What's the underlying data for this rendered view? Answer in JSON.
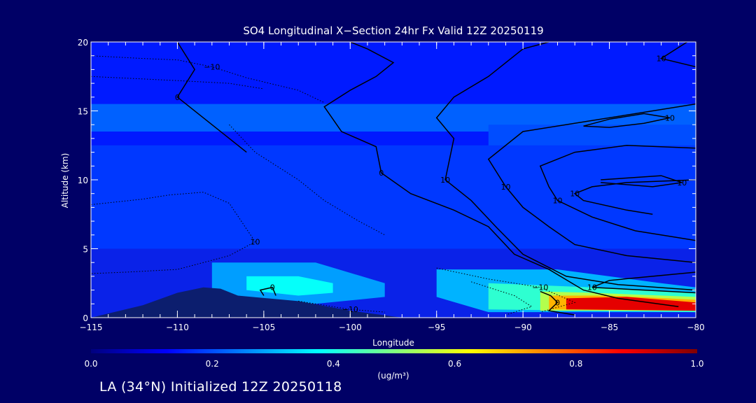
{
  "chart_data": {
    "type": "heatmap",
    "title": "SO4 Longitudinal X−Section 24hr  Fx Valid 12Z 20250119",
    "xlabel": "Longitude",
    "ylabel": "Altitude (km)",
    "xlim": [
      -115,
      -80
    ],
    "ylim": [
      0,
      20
    ],
    "x_ticks": [
      {
        "value": -115,
        "label": "−115"
      },
      {
        "value": -110,
        "label": "−110"
      },
      {
        "value": -105,
        "label": "−105"
      },
      {
        "value": -100,
        "label": "−100"
      },
      {
        "value": -95,
        "label": "−95"
      },
      {
        "value": -90,
        "label": "−90"
      },
      {
        "value": -85,
        "label": "−85"
      },
      {
        "value": -80,
        "label": "−80"
      }
    ],
    "y_ticks": [
      {
        "value": 0,
        "label": "0"
      },
      {
        "value": 5,
        "label": "5"
      },
      {
        "value": 10,
        "label": "10"
      },
      {
        "value": 15,
        "label": "15"
      },
      {
        "value": 20,
        "label": "20"
      }
    ],
    "colorbar": {
      "min": 0.0,
      "max": 1.0,
      "ticks": [
        "0.0",
        "0.2",
        "0.4",
        "0.6",
        "0.8",
        "1.0"
      ],
      "unit_label": "(ug/m³)",
      "colors": [
        "#00007f",
        "#0000ff",
        "#0080ff",
        "#00ffff",
        "#80ff80",
        "#ffff00",
        "#ff8000",
        "#ff0000",
        "#7f0000"
      ]
    },
    "concentration_regions": [
      {
        "value": 0.15,
        "polygon": [
          [
            -115,
            20
          ],
          [
            -80,
            20
          ],
          [
            -80,
            12.5
          ],
          [
            -115,
            12.5
          ]
        ]
      },
      {
        "value": 0.22,
        "polygon": [
          [
            -115,
            15.5
          ],
          [
            -80,
            15.5
          ],
          [
            -80,
            13.5
          ],
          [
            -115,
            13.5
          ]
        ]
      },
      {
        "value": 0.2,
        "polygon": [
          [
            -92,
            14
          ],
          [
            -80,
            14
          ],
          [
            -80,
            8
          ],
          [
            -88,
            8
          ],
          [
            -92,
            11
          ]
        ]
      },
      {
        "value": 0.18,
        "polygon": [
          [
            -115,
            12.5
          ],
          [
            -80,
            12.5
          ],
          [
            -80,
            5
          ],
          [
            -115,
            5
          ]
        ]
      },
      {
        "value": 0.28,
        "polygon": [
          [
            -108,
            4
          ],
          [
            -102,
            4
          ],
          [
            -98,
            2.5
          ],
          [
            -98,
            1.5
          ],
          [
            -102,
            1
          ],
          [
            -108,
            1.5
          ]
        ]
      },
      {
        "value": 0.38,
        "polygon": [
          [
            -106,
            3
          ],
          [
            -103,
            3
          ],
          [
            -101,
            2.5
          ],
          [
            -101,
            1.8
          ],
          [
            -103,
            1.6
          ],
          [
            -106,
            2
          ]
        ]
      },
      {
        "value": 0.3,
        "polygon": [
          [
            -95,
            3.5
          ],
          [
            -88,
            3.5
          ],
          [
            -82,
            2.5
          ],
          [
            -80,
            2.2
          ],
          [
            -80,
            0.4
          ],
          [
            -92,
            0.4
          ],
          [
            -95,
            1.5
          ]
        ]
      },
      {
        "value": 0.42,
        "polygon": [
          [
            -92,
            2.5
          ],
          [
            -86,
            2.2
          ],
          [
            -80,
            1.8
          ],
          [
            -80,
            0.4
          ],
          [
            -92,
            0.6
          ]
        ]
      },
      {
        "value": 0.55,
        "polygon": [
          [
            -89,
            1.9
          ],
          [
            -86,
            1.8
          ],
          [
            -80,
            1.5
          ],
          [
            -80,
            0.5
          ],
          [
            -89,
            0.5
          ]
        ]
      },
      {
        "value": 0.7,
        "polygon": [
          [
            -88.5,
            1.6
          ],
          [
            -85,
            1.6
          ],
          [
            -80,
            1.3
          ],
          [
            -80,
            0.5
          ],
          [
            -88.5,
            0.6
          ]
        ]
      },
      {
        "value": 0.9,
        "polygon": [
          [
            -87.5,
            1.4
          ],
          [
            -84,
            1.5
          ],
          [
            -80,
            1.1
          ],
          [
            -80,
            0.5
          ],
          [
            -87.5,
            0.6
          ]
        ]
      }
    ],
    "terrain": [
      [
        -115,
        0
      ],
      [
        -112,
        0.9
      ],
      [
        -110,
        1.8
      ],
      [
        -108.5,
        2.2
      ],
      [
        -107.5,
        2.1
      ],
      [
        -106.5,
        1.6
      ],
      [
        -103,
        1.2
      ],
      [
        -100,
        0.5
      ],
      [
        -97,
        0
      ],
      [
        -80,
        0
      ]
    ],
    "contours": [
      {
        "label": "0",
        "points": [
          [
            -100,
            20
          ],
          [
            -99,
            19.5
          ],
          [
            -97.5,
            18.5
          ],
          [
            -98.5,
            17.5
          ],
          [
            -100,
            16.5
          ],
          [
            -101.5,
            15.3
          ],
          [
            -100.5,
            13.5
          ],
          [
            -98.5,
            12.4
          ],
          [
            -98.2,
            10.5
          ],
          [
            -96.5,
            9
          ],
          [
            -94,
            7.8
          ],
          [
            -92,
            6.6
          ],
          [
            -90.5,
            4.6
          ],
          [
            -88.5,
            3.5
          ],
          [
            -86.5,
            2
          ],
          [
            -84.5,
            1.4
          ],
          [
            -81,
            0.8
          ]
        ]
      },
      {
        "label": "0",
        "points": [
          [
            -105,
            1.6
          ],
          [
            -105.2,
            2
          ],
          [
            -104.5,
            2.2
          ],
          [
            -104.3,
            1.6
          ]
        ]
      },
      {
        "label": "0",
        "points": [
          [
            -110,
            20
          ],
          [
            -109,
            18
          ],
          [
            -110,
            16
          ],
          [
            -108,
            14
          ],
          [
            -106,
            12
          ]
        ]
      },
      {
        "label": "10",
        "points": [
          [
            -88.5,
            20
          ],
          [
            -90,
            19.5
          ],
          [
            -92,
            17.5
          ],
          [
            -94,
            16
          ],
          [
            -95,
            14.5
          ],
          [
            -94,
            13
          ],
          [
            -94.5,
            10
          ],
          [
            -93,
            8.5
          ],
          [
            -91.5,
            6.5
          ],
          [
            -90,
            4.6
          ],
          [
            -87.5,
            3
          ],
          [
            -84.5,
            2.4
          ],
          [
            -80,
            2
          ]
        ]
      },
      {
        "label": "10",
        "points": [
          [
            -80,
            15.5
          ],
          [
            -82.5,
            15
          ],
          [
            -86,
            14.3
          ],
          [
            -90,
            13.5
          ],
          [
            -92,
            11.5
          ],
          [
            -91,
            9.5
          ],
          [
            -90,
            8
          ],
          [
            -88.5,
            6.6
          ],
          [
            -87,
            5.3
          ],
          [
            -84,
            4.5
          ],
          [
            -80,
            4
          ]
        ]
      },
      {
        "label": "10",
        "points": [
          [
            -80,
            12.3
          ],
          [
            -84,
            12.5
          ],
          [
            -87,
            12
          ],
          [
            -89,
            11
          ],
          [
            -88.5,
            9.5
          ],
          [
            -88,
            8.5
          ],
          [
            -86,
            7.3
          ],
          [
            -83.5,
            6.3
          ],
          [
            -81,
            5.8
          ],
          [
            -80,
            5.6
          ]
        ]
      },
      {
        "label": "10",
        "points": [
          [
            -80,
            10
          ],
          [
            -84,
            9.8
          ],
          [
            -86,
            9.5
          ],
          [
            -87,
            9
          ],
          [
            -86.5,
            8.5
          ],
          [
            -84,
            7.8
          ],
          [
            -82.5,
            7.5
          ]
        ]
      },
      {
        "label": "10",
        "points": [
          [
            -86.5,
            13.9
          ],
          [
            -85,
            14.4
          ],
          [
            -83,
            14.8
          ],
          [
            -81.5,
            14.5
          ],
          [
            -83,
            14.1
          ],
          [
            -85,
            13.8
          ],
          [
            -86.5,
            13.9
          ]
        ]
      },
      {
        "label": "10",
        "points": [
          [
            -85.5,
            10
          ],
          [
            -82,
            10.3
          ],
          [
            -80.8,
            9.8
          ],
          [
            -82.5,
            9.5
          ],
          [
            -85.5,
            9.8
          ]
        ]
      },
      {
        "label": "10",
        "points": [
          [
            -80.5,
            20
          ],
          [
            -82,
            18.8
          ],
          [
            -80,
            18.2
          ]
        ]
      },
      {
        "label": "10",
        "points": [
          [
            -80,
            3.3
          ],
          [
            -82.5,
            3
          ],
          [
            -85,
            2.7
          ],
          [
            -86,
            2.2
          ],
          [
            -83,
            2
          ],
          [
            -80,
            1.8
          ]
        ]
      },
      {
        "label": "0",
        "points": [
          [
            -89,
            1.9
          ],
          [
            -88.4,
            1.6
          ],
          [
            -88,
            1.1
          ],
          [
            -88.5,
            0.5
          ],
          [
            -87,
            0.2
          ]
        ]
      }
    ],
    "dotted_contours": [
      {
        "label": "−10",
        "points": [
          [
            -115,
            19
          ],
          [
            -112,
            18.8
          ],
          [
            -110,
            18.7
          ],
          [
            -108,
            18.2
          ],
          [
            -106,
            17.4
          ],
          [
            -103,
            16.5
          ],
          [
            -101.5,
            15.6
          ]
        ]
      },
      {
        "label": "",
        "points": [
          [
            -115,
            17.5
          ],
          [
            -110,
            17.2
          ],
          [
            -107,
            17
          ],
          [
            -105,
            16.6
          ]
        ]
      },
      {
        "label": "",
        "points": [
          [
            -107,
            14
          ],
          [
            -105.5,
            12
          ],
          [
            -103,
            10
          ],
          [
            -101.5,
            8.5
          ],
          [
            -99.5,
            7
          ],
          [
            -98,
            6
          ]
        ]
      },
      {
        "label": "10",
        "points": [
          [
            -115,
            8.2
          ],
          [
            -112,
            8.6
          ],
          [
            -110.5,
            8.9
          ],
          [
            -108.5,
            9.1
          ],
          [
            -107,
            8.3
          ],
          [
            -105.5,
            5.5
          ],
          [
            -107,
            4.5
          ],
          [
            -110,
            3.5
          ],
          [
            -113,
            3.3
          ],
          [
            -115,
            3.2
          ]
        ]
      },
      {
        "label": "−10",
        "points": [
          [
            -103,
            1.2
          ],
          [
            -100,
            0.6
          ],
          [
            -98,
            0.4
          ]
        ]
      },
      {
        "label": "−10",
        "points": [
          [
            -95,
            3.6
          ],
          [
            -92,
            2.8
          ],
          [
            -89,
            2.2
          ],
          [
            -87,
            1.1
          ],
          [
            -89,
            0.4
          ]
        ]
      },
      {
        "label": "",
        "points": [
          [
            -93,
            2.6
          ],
          [
            -90.5,
            1.6
          ],
          [
            -89.5,
            0.8
          ],
          [
            -91,
            0.2
          ]
        ]
      }
    ]
  },
  "footer": {
    "location_text": "LA (34°N) Initialized 12Z 20250118"
  }
}
